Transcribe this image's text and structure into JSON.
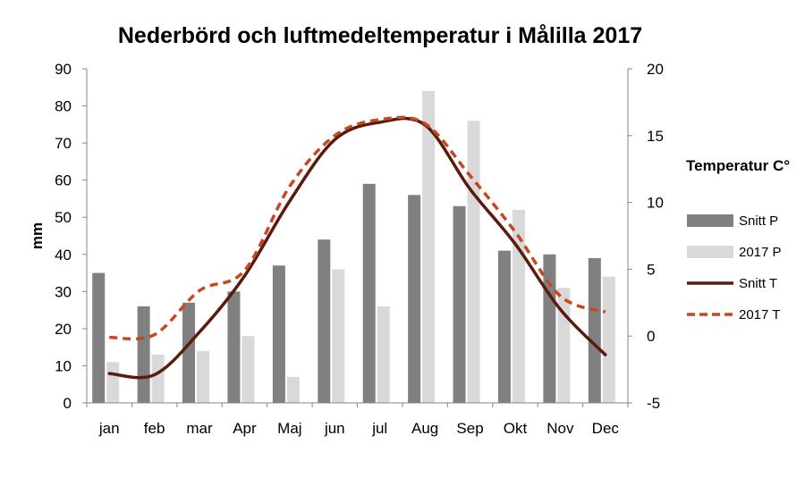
{
  "chart_data": {
    "type": "bar",
    "title": "Nederbörd och luftmedeltemperatur i Målilla   2017",
    "categories": [
      "jan",
      "feb",
      "mar",
      "Apr",
      "Maj",
      "jun",
      "jul",
      "Aug",
      "Sep",
      "Okt",
      "Nov",
      "Dec"
    ],
    "ylabel": "mm",
    "ylim": [
      0,
      90
    ],
    "yticks": [
      0,
      10,
      20,
      30,
      40,
      50,
      60,
      70,
      80,
      90
    ],
    "y2label": "Temperatur C°",
    "y2lim": [
      -5,
      20
    ],
    "y2ticks": [
      -5,
      0,
      5,
      10,
      15,
      20
    ],
    "legend_position": "right",
    "grid": false,
    "bar_series": [
      {
        "name": "Snitt P",
        "axis": "left",
        "color": "#808080",
        "values": [
          35,
          26,
          27,
          30,
          37,
          44,
          59,
          56,
          53,
          41,
          40,
          39
        ]
      },
      {
        "name": "2017 P",
        "axis": "left",
        "color": "#d9d9d9",
        "values": [
          11,
          13,
          14,
          18,
          7,
          36,
          26,
          84,
          76,
          52,
          31,
          34
        ]
      }
    ],
    "line_series": [
      {
        "name": "Snitt T",
        "axis": "right",
        "color": "#5a1a0e",
        "style": "solid",
        "values": [
          -2.8,
          -2.9,
          0.3,
          4.5,
          10.1,
          14.7,
          16.0,
          15.8,
          11.0,
          6.9,
          2.0,
          -1.4
        ]
      },
      {
        "name": "2017 T",
        "axis": "right",
        "color": "#c8471e",
        "style": "dashed",
        "values": [
          -0.1,
          0.1,
          3.4,
          4.9,
          11.2,
          15.0,
          16.2,
          15.9,
          12.0,
          7.8,
          3.0,
          1.8
        ]
      }
    ]
  }
}
